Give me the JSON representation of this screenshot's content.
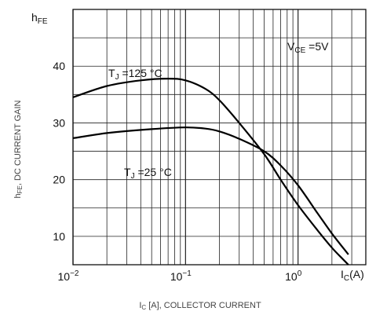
{
  "chart_data": {
    "type": "line",
    "title": "",
    "xlabel": "I_C [A], COLLECTOR CURRENT",
    "ylabel": "h_FE, DC CURRENT GAIN",
    "x_scale": "log",
    "xlim": [
      0.01,
      4.0
    ],
    "ylim": [
      5,
      50
    ],
    "grid": true,
    "y_axis_symbol": "hFE",
    "x_axis_symbol": "I C (A)",
    "condition": "VCE =5V",
    "xticks": [
      "10−2",
      "10−1",
      "100"
    ],
    "yticks": [
      10,
      20,
      30,
      40
    ],
    "series": [
      {
        "name": "TJ =125 °C",
        "x": [
          0.01,
          0.02,
          0.04,
          0.07,
          0.1,
          0.15,
          0.2,
          0.3,
          0.5,
          0.7,
          1.0,
          1.5,
          2.0,
          2.5,
          2.8
        ],
        "y": [
          34.5,
          36.5,
          37.5,
          37.8,
          37.5,
          36,
          34,
          30,
          24.5,
          20,
          15.5,
          11,
          8,
          6,
          5
        ]
      },
      {
        "name": "TJ =25 °C",
        "x": [
          0.01,
          0.02,
          0.05,
          0.1,
          0.15,
          0.2,
          0.3,
          0.5,
          0.7,
          1.0,
          1.5,
          2.0,
          2.8
        ],
        "y": [
          27.3,
          28.2,
          28.9,
          29.2,
          29.0,
          28.5,
          27.2,
          25,
          22.5,
          19,
          14,
          10.5,
          6.8
        ]
      }
    ]
  }
}
